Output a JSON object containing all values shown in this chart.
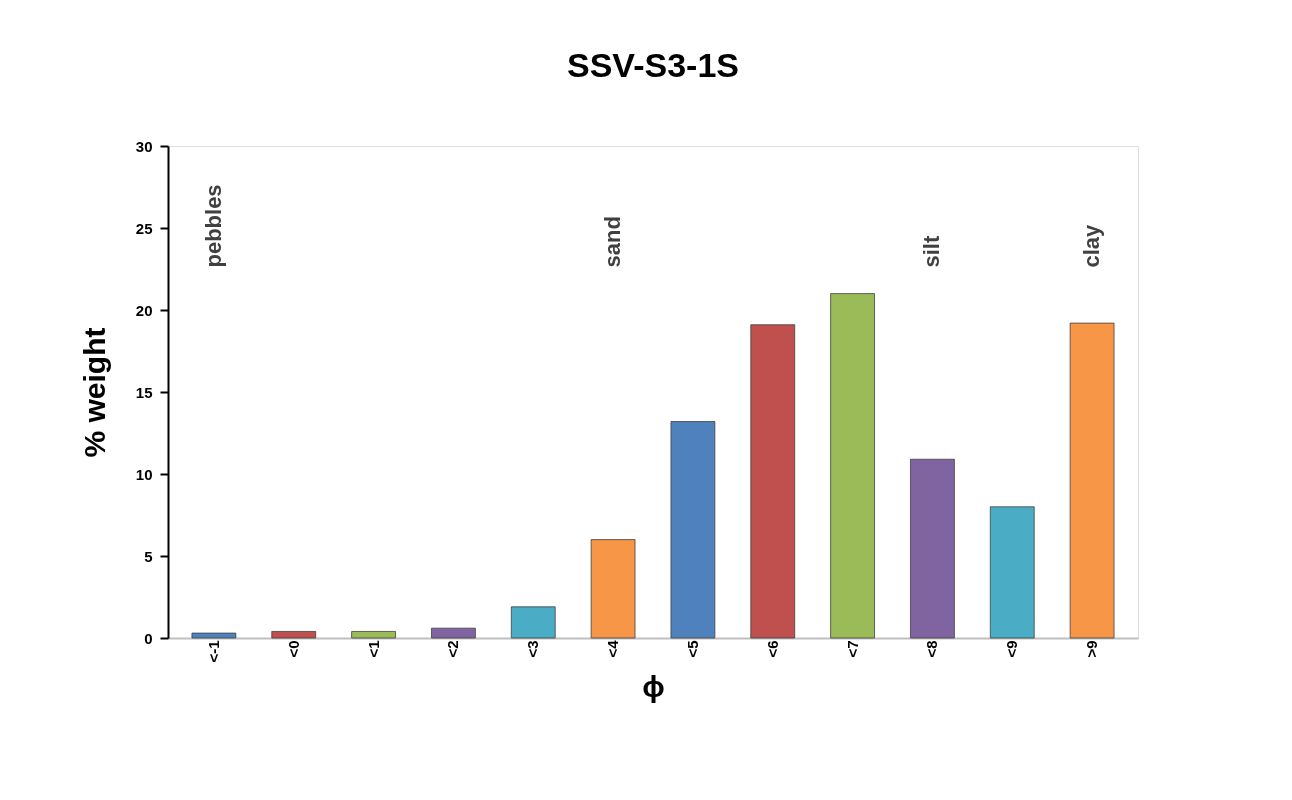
{
  "chart_data": {
    "type": "bar",
    "title": "SSV-S3-1S",
    "xlabel": "ϕ",
    "ylabel": "% weight",
    "categories": [
      "<-1",
      "<0",
      "<1",
      "<2",
      "<3",
      "<4",
      "<5",
      "<6",
      "<7",
      "<8",
      "<9",
      ">9"
    ],
    "values": [
      0.3,
      0.4,
      0.4,
      0.6,
      1.9,
      6.0,
      13.2,
      19.1,
      21.0,
      10.9,
      8.0,
      19.2
    ],
    "colors": [
      "#4f81bd",
      "#c0504d",
      "#9bbb59",
      "#8064a2",
      "#4bacc6",
      "#f79646",
      "#4f81bd",
      "#c0504d",
      "#9bbb59",
      "#8064a2",
      "#4bacc6",
      "#f79646"
    ],
    "ylim": [
      0,
      30
    ],
    "yticks": [
      0,
      5,
      10,
      15,
      20,
      25,
      30
    ],
    "grid": false,
    "annotations": [
      "pebbles",
      "sand",
      "silt",
      "clay"
    ]
  }
}
